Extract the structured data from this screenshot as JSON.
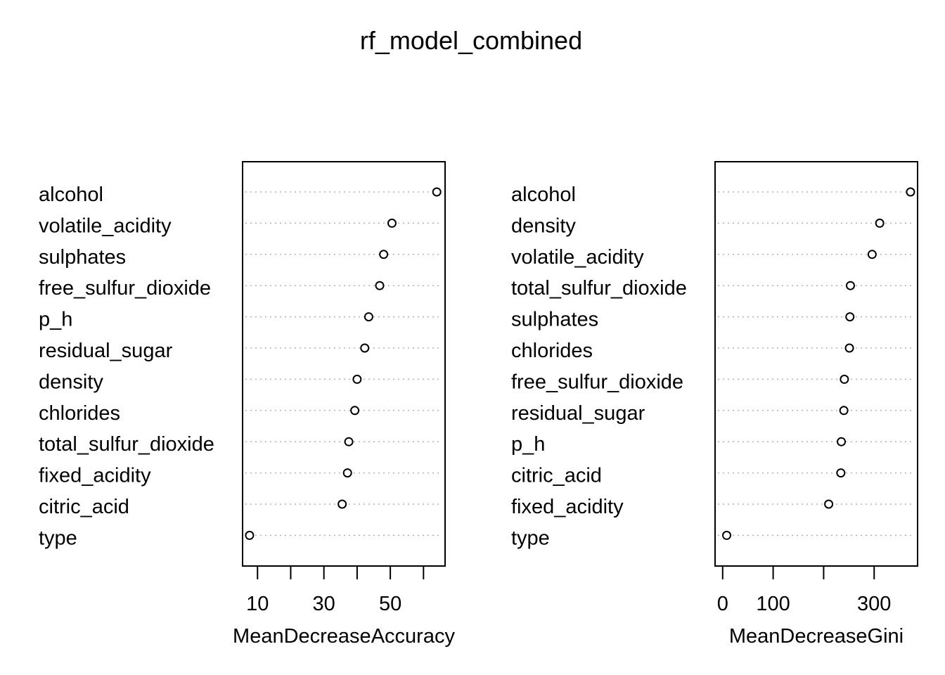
{
  "title": "rf_model_combined",
  "chart_data": [
    {
      "type": "scatter",
      "subtype": "dotchart",
      "xlabel": "MeanDecreaseAccuracy",
      "xlim": [
        5.5,
        66.5
      ],
      "xticks": [
        10,
        20,
        30,
        40,
        50,
        60
      ],
      "xtick_labels": [
        "10",
        "",
        "30",
        "",
        "50",
        ""
      ],
      "grid": "dotted-horizontal",
      "categories": [
        "alcohol",
        "volatile_acidity",
        "sulphates",
        "free_sulfur_dioxide",
        "p_h",
        "residual_sugar",
        "density",
        "chlorides",
        "total_sulfur_dioxide",
        "fixed_acidity",
        "citric_acid",
        "type"
      ],
      "values": [
        64.0,
        50.5,
        48.0,
        46.8,
        43.5,
        42.3,
        40.0,
        39.3,
        37.5,
        37.1,
        35.5,
        7.6
      ]
    },
    {
      "type": "scatter",
      "subtype": "dotchart",
      "xlabel": "MeanDecreaseGini",
      "xlim": [
        -15,
        386
      ],
      "xticks": [
        0,
        100,
        200,
        300
      ],
      "xtick_labels": [
        "0",
        "100",
        "",
        "300"
      ],
      "grid": "dotted-horizontal",
      "categories": [
        "alcohol",
        "density",
        "volatile_acidity",
        "total_sulfur_dioxide",
        "sulphates",
        "chlorides",
        "free_sulfur_dioxide",
        "residual_sugar",
        "p_h",
        "citric_acid",
        "fixed_acidity",
        "type"
      ],
      "values": [
        372,
        311,
        296,
        253,
        252,
        251,
        241,
        240,
        235,
        234,
        210,
        8
      ]
    }
  ]
}
